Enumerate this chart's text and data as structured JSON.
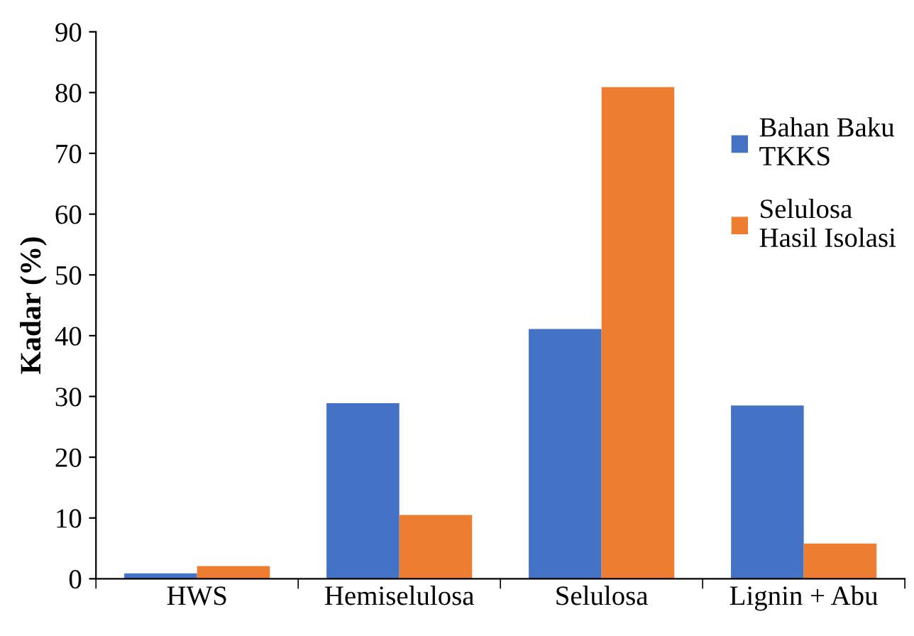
{
  "chart_data": {
    "type": "bar",
    "ylabel": "Kadar (%)",
    "categories": [
      "HWS",
      "Hemiselulosa",
      "Selulosa",
      "Lignin + Abu"
    ],
    "series": [
      {
        "name": "Bahan Baku\nTKKS",
        "color": "#4472c4",
        "values": [
          0.9,
          28.9,
          41.1,
          28.5
        ]
      },
      {
        "name": "Selulosa\nHasil Isolasi",
        "color": "#ed7d31",
        "values": [
          2.1,
          10.5,
          80.9,
          5.8
        ]
      }
    ],
    "ylim": [
      0,
      90
    ],
    "yticks": [
      0,
      10,
      20,
      30,
      40,
      50,
      60,
      70,
      80,
      90
    ],
    "grid": false,
    "legend": "right"
  }
}
